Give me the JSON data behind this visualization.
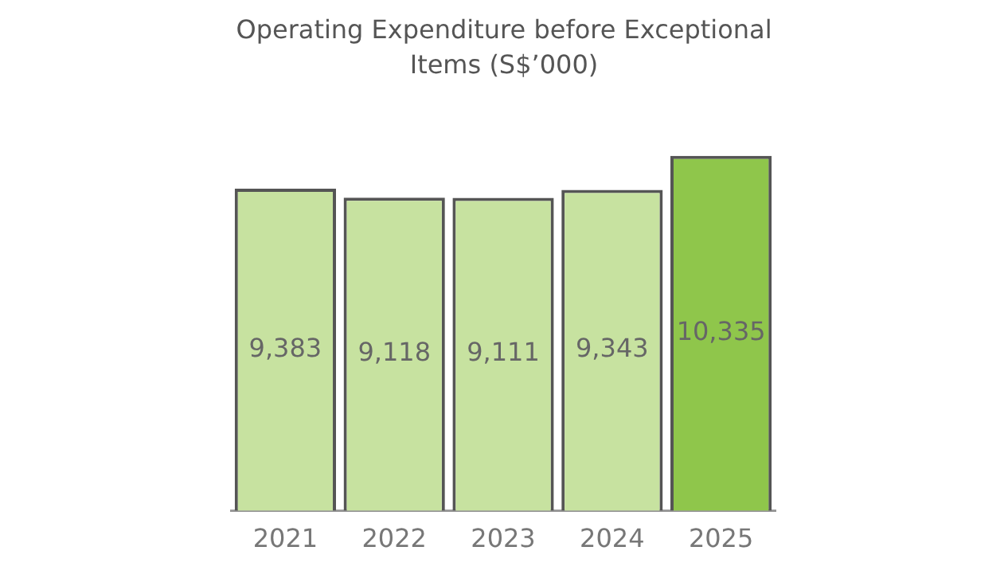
{
  "chart_data": {
    "type": "bar",
    "title": "Operating Expenditure before Exceptional Items (S$’000)",
    "categories": [
      "2021",
      "2022",
      "2023",
      "2024",
      "2025"
    ],
    "values": [
      9383,
      9118,
      9111,
      9343,
      10335
    ],
    "value_labels": [
      "9,383",
      "9,118",
      "9,111",
      "9,343",
      "10,335"
    ],
    "colors": [
      "#c7e2a0",
      "#c7e2a0",
      "#c7e2a0",
      "#c7e2a0",
      "#8fc64b"
    ],
    "tick_labels": "x",
    "grid": false,
    "legend": false
  }
}
